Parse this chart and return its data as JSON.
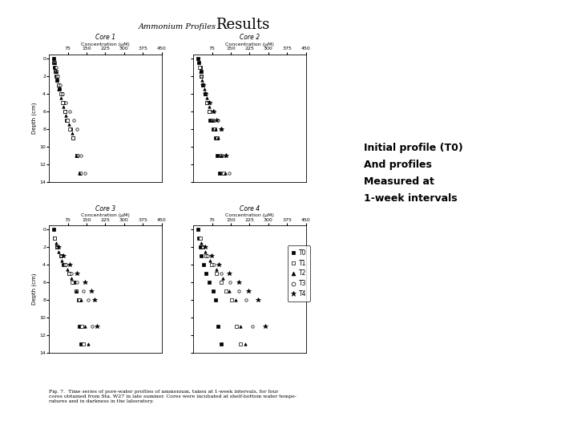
{
  "title": "Results",
  "subtitle": "Ammonium Profiles",
  "background_color": "#ffffff",
  "annotation_text": "Initial profile (T0)\nAnd profiles\nMeasured at\n1-week intervals",
  "figure_caption": "Fig. 7.  Time series of pore-water profiles of ammonium, taken at 1-week intervals, for four\ncores obtained from Sta. W27 in late summer. Cores were incubated at shelf-bottom water tempe-\nratures and in darkness in the laboratory.",
  "cores": [
    {
      "title": "Core 1",
      "xlabel": "Concentration (μM)",
      "xlim": [
        0,
        450
      ],
      "xticks": [
        0,
        75,
        150,
        225,
        300,
        375,
        450
      ]
    },
    {
      "title": "Core 2",
      "xlabel": "Concentration (μM)",
      "xlim": [
        0,
        450
      ],
      "xticks": [
        0,
        75,
        150,
        225,
        300,
        375,
        450
      ]
    },
    {
      "title": "Core 3",
      "xlabel": "Concentration (μM)",
      "xlim": [
        0,
        450
      ],
      "xticks": [
        0,
        75,
        150,
        225,
        300,
        375,
        450
      ]
    },
    {
      "title": "Core 4",
      "xlabel": "Concentration (μM)",
      "xlim": [
        0,
        450
      ],
      "xticks": [
        0,
        75,
        150,
        225,
        300,
        375,
        450
      ]
    }
  ],
  "ylim": [
    -0.5,
    14
  ],
  "yticks": [
    0,
    2,
    4,
    6,
    8,
    10,
    12,
    14
  ],
  "ylabel": "Depth (cm)",
  "series": [
    {
      "label": "T0",
      "marker": "s",
      "filled": true
    },
    {
      "label": "T1",
      "marker": "s",
      "filled": false
    },
    {
      "label": "T2",
      "marker": "^",
      "filled": true
    },
    {
      "label": "T3",
      "marker": "o",
      "filled": false
    },
    {
      "label": "T4",
      "marker": "*",
      "filled": true
    }
  ],
  "data": {
    "core1": {
      "T0": {
        "x": [
          18,
          20,
          22,
          25,
          28,
          32,
          38,
          42,
          50,
          58,
          62,
          70,
          85,
          95,
          110
        ],
        "y": [
          0,
          0.5,
          1,
          1.5,
          2,
          2.5,
          3,
          3.5,
          4,
          5,
          6,
          7,
          8,
          9,
          11
        ]
      },
      "T1": {
        "x": [
          22,
          28,
          32,
          38,
          48,
          55,
          62,
          72,
          82,
          95,
          110,
          125
        ],
        "y": [
          0.5,
          1.5,
          2,
          3,
          4,
          5,
          6,
          7,
          8,
          9,
          11,
          13
        ]
      },
      "T2": {
        "x": [
          22,
          28,
          32,
          38,
          48,
          58,
          68,
          78,
          92,
          108,
          122
        ],
        "y": [
          0.5,
          1.5,
          2.5,
          3.5,
          4.5,
          5.5,
          6.5,
          7.5,
          8.5,
          11,
          13
        ]
      },
      "T3": {
        "x": [
          28,
          35,
          45,
          55,
          68,
          82,
          98,
          112,
          128,
          142
        ],
        "y": [
          1,
          2,
          3,
          4,
          5,
          6,
          7,
          8,
          11,
          13
        ]
      },
      "T4": {
        "x": [],
        "y": []
      }
    },
    "core2": {
      "T0": {
        "x": [
          18,
          22,
          28,
          30,
          32,
          38,
          48,
          55,
          62,
          68,
          78,
          88,
          95,
          105
        ],
        "y": [
          0,
          0.5,
          1,
          1.5,
          2,
          3,
          4,
          5,
          6,
          7,
          8,
          9,
          11,
          13
        ]
      },
      "T1": {
        "x": [
          25,
          32,
          38,
          48,
          55,
          65,
          75,
          85,
          95,
          110,
          122
        ],
        "y": [
          1,
          2,
          3,
          4,
          5,
          6,
          7,
          8,
          9,
          11,
          13
        ]
      },
      "T2": {
        "x": [
          28,
          35,
          45,
          55,
          65,
          75,
          88,
          98,
          112,
          128
        ],
        "y": [
          1.5,
          2.5,
          3.5,
          4.5,
          5.5,
          7,
          8,
          9,
          11,
          13
        ]
      },
      "T3": {
        "x": [
          32,
          42,
          52,
          68,
          82,
          98,
          112,
          128,
          142
        ],
        "y": [
          2,
          3,
          4,
          5,
          6,
          7,
          8,
          11,
          13
        ]
      },
      "T4": {
        "x": [
          38,
          48,
          62,
          78,
          92,
          112,
          132
        ],
        "y": [
          3,
          4,
          5,
          6,
          7,
          8,
          11
        ]
      }
    },
    "core3": {
      "T0": {
        "x": [
          18,
          22,
          32,
          48,
          58,
          78,
          98,
          108,
          118,
          122,
          128
        ],
        "y": [
          0,
          1,
          2,
          3,
          4,
          5,
          6,
          7,
          8,
          11,
          13
        ]
      },
      "T1": {
        "x": [
          22,
          32,
          48,
          62,
          78,
          92,
          108,
          122,
          132,
          138
        ],
        "y": [
          1,
          2,
          3,
          4,
          5,
          6,
          7,
          8,
          11,
          13
        ]
      },
      "T2": {
        "x": [
          28,
          38,
          52,
          72,
          88,
          108,
          128,
          142,
          158
        ],
        "y": [
          1.5,
          2.5,
          3.5,
          4.5,
          5.5,
          7,
          8,
          11,
          13
        ]
      },
      "T3": {
        "x": [
          32,
          48,
          68,
          88,
          112,
          138,
          158,
          172
        ],
        "y": [
          2,
          3,
          4,
          5,
          6,
          7,
          8,
          11
        ]
      },
      "T4": {
        "x": [
          38,
          58,
          82,
          112,
          142,
          168,
          182,
          192
        ],
        "y": [
          2,
          3,
          4,
          5,
          6,
          7,
          8,
          11
        ]
      }
    },
    "core4": {
      "T0": {
        "x": [
          18,
          22,
          28,
          32,
          42,
          52,
          62,
          78,
          88,
          98,
          112
        ],
        "y": [
          0,
          1,
          2,
          3,
          4,
          5,
          6,
          7,
          8,
          11,
          13
        ]
      },
      "T1": {
        "x": [
          28,
          38,
          52,
          72,
          92,
          112,
          132,
          152,
          172,
          188
        ],
        "y": [
          1,
          2,
          3,
          4,
          5,
          6,
          7,
          8,
          11,
          13
        ]
      },
      "T2": {
        "x": [
          32,
          48,
          68,
          92,
          118,
          142,
          168,
          188,
          208
        ],
        "y": [
          1.5,
          2.5,
          3.5,
          4.5,
          5.5,
          7,
          8,
          11,
          13
        ]
      },
      "T3": {
        "x": [
          38,
          58,
          82,
          112,
          148,
          182,
          212,
          238
        ],
        "y": [
          2,
          3,
          4,
          5,
          6,
          7,
          8,
          11
        ]
      },
      "T4": {
        "x": [
          48,
          72,
          102,
          142,
          182,
          222,
          258,
          288
        ],
        "y": [
          2,
          3,
          4,
          5,
          6,
          7,
          8,
          11
        ]
      }
    }
  }
}
